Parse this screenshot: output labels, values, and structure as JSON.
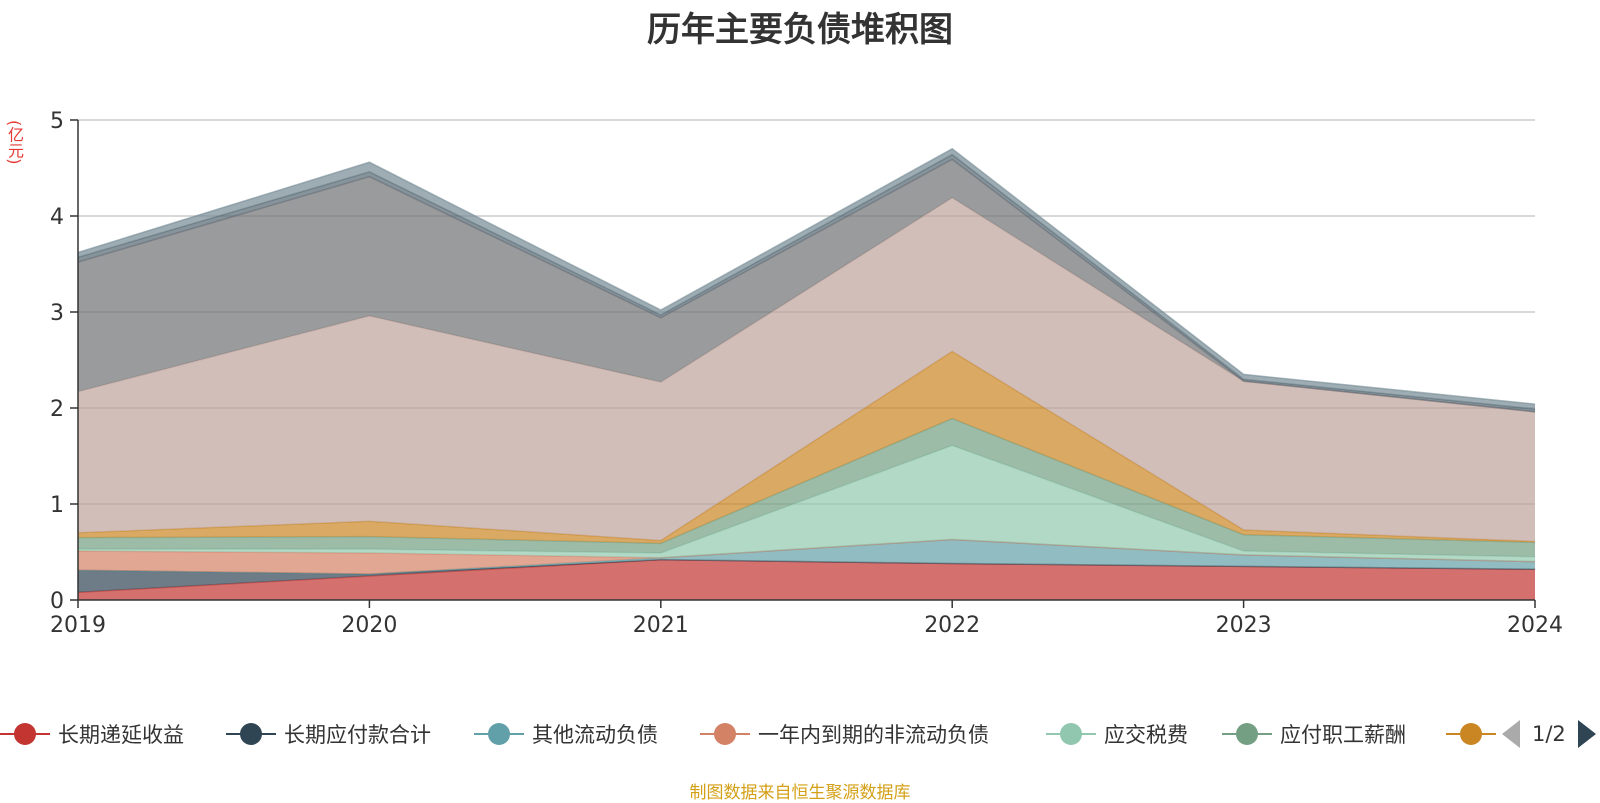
{
  "title": "历年主要负债堆积图",
  "unit": "(亿元)",
  "source": "制图数据来自恒生聚源数据库",
  "pager": {
    "text": "1/2"
  },
  "legend": [
    {
      "label": "长期递延收益",
      "color": "#c23531"
    },
    {
      "label": "长期应付款合计",
      "color": "#2f4554"
    },
    {
      "label": "其他流动负债",
      "color": "#61a0a8"
    },
    {
      "label": "一年内到期的非流动负债",
      "color": "#d48265"
    },
    {
      "label": "应交税费",
      "color": "#91c7ae"
    },
    {
      "label": "应付职工薪酬",
      "color": "#749f83"
    },
    {
      "label": "",
      "color": "#ca8622"
    }
  ],
  "chart_data": {
    "type": "area",
    "stacked": true,
    "x": [
      "2019",
      "2020",
      "2021",
      "2022",
      "2023",
      "2024"
    ],
    "ylim": [
      0,
      5
    ],
    "yticks": [
      0,
      1,
      2,
      3,
      4,
      5
    ],
    "grid": true,
    "series": [
      {
        "name": "长期递延收益",
        "color": "#c23531",
        "values": [
          0.08,
          0.25,
          0.42,
          0.38,
          0.35,
          0.32
        ]
      },
      {
        "name": "长期应付款合计",
        "color": "#2f4554",
        "values": [
          0.23,
          0.02,
          0.0,
          0.0,
          0.0,
          0.0
        ]
      },
      {
        "name": "其他流动负债",
        "color": "#61a0a8",
        "values": [
          0.0,
          0.0,
          0.02,
          0.25,
          0.12,
          0.08
        ]
      },
      {
        "name": "一年内到期的非流动负债",
        "color": "#d48265",
        "values": [
          0.2,
          0.22,
          0.0,
          0.0,
          0.0,
          0.0
        ]
      },
      {
        "name": "应交税费",
        "color": "#91c7ae",
        "values": [
          0.02,
          0.04,
          0.05,
          0.98,
          0.04,
          0.05
        ]
      },
      {
        "name": "应付职工薪酬",
        "color": "#749f83",
        "values": [
          0.12,
          0.13,
          0.1,
          0.28,
          0.17,
          0.15
        ]
      },
      {
        "color": "#ca8622",
        "values": [
          0.05,
          0.16,
          0.03,
          0.7,
          0.05,
          0.01
        ]
      },
      {
        "color": "#bda29a",
        "values": [
          1.47,
          2.14,
          1.65,
          1.6,
          1.55,
          1.35
        ]
      },
      {
        "color": "#6e7074",
        "values": [
          1.35,
          1.45,
          0.67,
          0.4,
          0.0,
          0.0
        ]
      },
      {
        "color": "#546570",
        "values": [
          0.05,
          0.05,
          0.03,
          0.05,
          0.02,
          0.03
        ]
      },
      {
        "color": "#758a94",
        "values": [
          0.05,
          0.1,
          0.05,
          0.06,
          0.05,
          0.05
        ]
      }
    ]
  }
}
